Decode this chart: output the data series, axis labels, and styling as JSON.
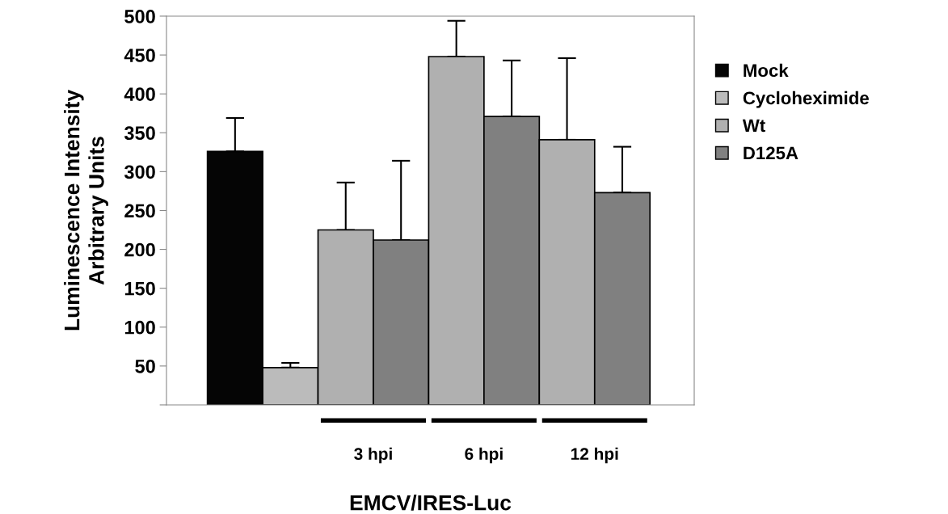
{
  "chart_data": {
    "type": "bar",
    "categories": [
      null,
      "3 hpi",
      "6 hpi",
      "12 hpi"
    ],
    "xlabel": "EMCV/IRES-Luc",
    "ylabel": "Luminescence Intensity\nArbitrary Units",
    "ylim": [
      0,
      500
    ],
    "yticks": [
      {
        "value": 0,
        "label": null
      },
      50,
      100,
      150,
      200,
      250,
      300,
      350,
      400,
      450,
      500
    ],
    "series": [
      {
        "name": "Mock",
        "color": "#050505",
        "values": [
          326,
          null,
          null,
          null
        ],
        "errors": [
          [
            326,
            369
          ],
          null,
          null,
          null
        ]
      },
      {
        "name": "Cycloheximide",
        "color": "#bbbbbb",
        "values": [
          48,
          null,
          null,
          null
        ],
        "errors": [
          [
            48,
            54
          ],
          null,
          null,
          null
        ]
      },
      {
        "name": "Wt",
        "color": "#b0b0b0",
        "values": [
          null,
          225,
          448,
          341
        ],
        "errors": [
          null,
          [
            225,
            286
          ],
          [
            448,
            494
          ],
          [
            341,
            446
          ]
        ]
      },
      {
        "name": "D125A",
        "color": "#808080",
        "values": [
          null,
          212,
          371,
          273
        ],
        "errors": [
          null,
          [
            212,
            314
          ],
          [
            371,
            443
          ],
          [
            273,
            332
          ]
        ]
      }
    ],
    "grid": false,
    "legend": "right"
  }
}
